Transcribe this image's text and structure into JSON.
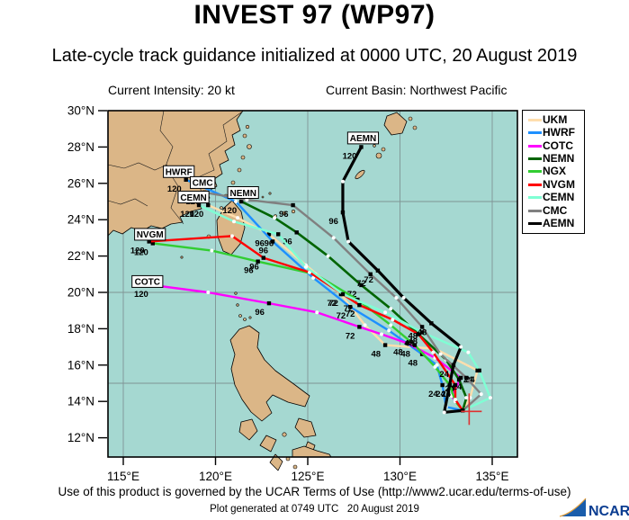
{
  "page": {
    "title": "INVEST 97 (WP97)",
    "subtitle": "Late-cycle track guidance initialized at 0000 UTC, 20 August 2019",
    "intensity": "Current Intensity: 20 kt",
    "basin": "Current Basin: Northwest Pacific",
    "terms": "Use of this product is governed by the UCAR Terms of Use (http://www2.ucar.edu/terms-of-use)",
    "generated": "Plot generated at 0749 UTC   20 August 2019",
    "logo_text": "NCAR"
  },
  "chart_data": {
    "type": "line",
    "title": "INVEST 97 (WP97)",
    "subtitle": "Late-cycle track guidance initialized at 0000 UTC, 20 August 2019",
    "current_intensity_kt": 20,
    "basin": "Northwest Pacific",
    "map": {
      "lon_range": [
        114.2,
        136.4
      ],
      "lat_range": [
        10.9,
        30.0
      ],
      "grid_lons": [
        115,
        120,
        125,
        130,
        135
      ],
      "grid_lats": [
        15,
        20,
        25
      ],
      "ocean_color": "#A5D8D1",
      "land_color": "#DBB687",
      "grid_color": "#7f9494"
    },
    "x_ticks": [
      {
        "lon": 115,
        "label": "115°E"
      },
      {
        "lon": 120,
        "label": "120°E"
      },
      {
        "lon": 125,
        "label": "125°E"
      },
      {
        "lon": 130,
        "label": "130°E"
      },
      {
        "lon": 135,
        "label": "135°E"
      }
    ],
    "y_ticks": [
      {
        "lat": 30,
        "label": "30°N"
      },
      {
        "lat": 28,
        "label": "28°N"
      },
      {
        "lat": 26,
        "label": "26°N"
      },
      {
        "lat": 24,
        "label": "24°N"
      },
      {
        "lat": 22,
        "label": "22°N"
      },
      {
        "lat": 20,
        "label": "20°N"
      },
      {
        "lat": 18,
        "label": "18°N"
      },
      {
        "lat": 16,
        "label": "16°N"
      },
      {
        "lat": 14,
        "label": "14°N"
      },
      {
        "lat": 12,
        "label": "12°N"
      }
    ],
    "hour_labels": [
      "24",
      "48",
      "72",
      "96",
      "120"
    ],
    "start_marker": {
      "lon": 133.75,
      "lat": 13.45,
      "color": "#e03030"
    },
    "tracks": [
      {
        "id": "UKM",
        "color": "#FFDEAD",
        "width": 2.4,
        "name_box": false,
        "box_offset": [
          0,
          0
        ],
        "points": [
          [
            133.4,
            13.5
          ],
          [
            133.8,
            14.2
          ],
          [
            134.2,
            15.7
          ],
          [
            131.9,
            16.9
          ],
          [
            129.2,
            17.1
          ],
          [
            128.1,
            18.2
          ],
          [
            126.8,
            19.9
          ],
          [
            124.9,
            21.5
          ],
          [
            122.9,
            23.2
          ],
          [
            121.2,
            24.1
          ],
          [
            119.6,
            24.8
          ]
        ]
      },
      {
        "id": "HWRF",
        "color": "#1E90FF",
        "width": 2.4,
        "name_box": true,
        "box_offset": [
          -8,
          -9
        ],
        "points": [
          [
            133.4,
            13.5
          ],
          [
            132.5,
            13.7
          ],
          [
            132.3,
            14.9
          ],
          [
            132.0,
            16.0
          ],
          [
            131.2,
            16.6
          ],
          [
            129.4,
            17.9
          ],
          [
            127.3,
            19.2
          ],
          [
            125.3,
            20.8
          ],
          [
            123.1,
            22.8
          ],
          [
            121.1,
            25.0
          ],
          [
            118.4,
            26.2
          ]
        ]
      },
      {
        "id": "COTC",
        "color": "#FF00FF",
        "width": 2.4,
        "name_box": true,
        "box_offset": [
          -6,
          -4
        ],
        "points": [
          [
            133.4,
            13.5
          ],
          [
            132.8,
            14.3
          ],
          [
            133.3,
            15.3
          ],
          [
            131.9,
            16.4
          ],
          [
            130.4,
            17.2
          ],
          [
            129.0,
            17.7
          ],
          [
            127.8,
            18.1
          ],
          [
            125.5,
            18.9
          ],
          [
            122.9,
            19.4
          ],
          [
            119.6,
            20.0
          ],
          [
            116.6,
            20.4
          ]
        ]
      },
      {
        "id": "NEMN",
        "color": "#006400",
        "width": 2.6,
        "name_box": true,
        "box_offset": [
          2,
          -10
        ],
        "points": [
          [
            133.4,
            13.5
          ],
          [
            133.6,
            14.2
          ],
          [
            133.2,
            15.2
          ],
          [
            132.5,
            16.3
          ],
          [
            131.0,
            17.7
          ],
          [
            129.5,
            19.1
          ],
          [
            127.9,
            20.4
          ],
          [
            126.1,
            22.0
          ],
          [
            124.4,
            23.3
          ],
          [
            123.2,
            24.1
          ],
          [
            121.4,
            25.0
          ]
        ]
      },
      {
        "id": "NGX",
        "color": "#32CD32",
        "width": 2.4,
        "name_box": false,
        "box_offset": [
          0,
          0
        ],
        "points": [
          [
            133.4,
            13.5
          ],
          [
            133.0,
            14.0
          ],
          [
            132.7,
            14.9
          ],
          [
            131.9,
            15.9
          ],
          [
            130.8,
            17.1
          ],
          [
            129.5,
            18.2
          ],
          [
            127.7,
            19.6
          ],
          [
            125.4,
            21.0
          ],
          [
            122.3,
            21.7
          ],
          [
            119.8,
            22.3
          ],
          [
            116.6,
            22.7
          ]
        ]
      },
      {
        "id": "NVGM",
        "color": "#FF0000",
        "width": 2.4,
        "name_box": true,
        "box_offset": [
          1,
          -8
        ],
        "points": [
          [
            133.4,
            13.5
          ],
          [
            133.0,
            14.1
          ],
          [
            133.0,
            14.9
          ],
          [
            131.8,
            16.7
          ],
          [
            131.0,
            17.7
          ],
          [
            129.6,
            18.5
          ],
          [
            127.8,
            19.3
          ],
          [
            125.1,
            21.1
          ],
          [
            122.6,
            21.9
          ],
          [
            120.9,
            23.1
          ],
          [
            116.4,
            22.8
          ]
        ]
      },
      {
        "id": "CEMN",
        "color": "#7FFFD4",
        "width": 2.4,
        "name_box": true,
        "box_offset": [
          -6,
          -9
        ],
        "points": [
          [
            133.4,
            13.5
          ],
          [
            134.9,
            14.2
          ],
          [
            134.3,
            15.7
          ],
          [
            133.7,
            16.7
          ],
          [
            131.2,
            17.8
          ],
          [
            129.2,
            18.9
          ],
          [
            126.9,
            19.9
          ],
          [
            124.9,
            21.4
          ],
          [
            123.4,
            23.2
          ],
          [
            121.0,
            23.9
          ],
          [
            119.1,
            24.8
          ]
        ]
      },
      {
        "id": "CMC",
        "color": "#808080",
        "width": 2.4,
        "name_box": true,
        "box_offset": [
          -2,
          -11
        ],
        "points": [
          [
            133.4,
            13.5
          ],
          [
            134.4,
            14.4
          ],
          [
            133.6,
            15.3
          ],
          [
            132.2,
            16.6
          ],
          [
            131.2,
            18.1
          ],
          [
            129.8,
            19.7
          ],
          [
            128.4,
            21.0
          ],
          [
            126.4,
            23.0
          ],
          [
            124.2,
            24.8
          ],
          [
            121.7,
            25.1
          ],
          [
            119.4,
            25.5
          ]
        ]
      },
      {
        "id": "AEMN",
        "color": "#000000",
        "width": 3.2,
        "name_box": true,
        "box_offset": [
          2,
          -10
        ],
        "points": [
          [
            133.4,
            13.5
          ],
          [
            132.4,
            13.4
          ],
          [
            132.9,
            16.0
          ],
          [
            133.3,
            17.0
          ],
          [
            131.7,
            18.3
          ],
          [
            130.2,
            19.7
          ],
          [
            128.8,
            21.2
          ],
          [
            127.2,
            22.8
          ],
          [
            126.9,
            24.4
          ],
          [
            126.9,
            26.1
          ],
          [
            127.9,
            28.0
          ]
        ]
      }
    ],
    "legend": {
      "position": "upper-right-outside",
      "items": [
        {
          "label": "UKM",
          "color": "#FFDEAD"
        },
        {
          "label": "HWRF",
          "color": "#1E90FF"
        },
        {
          "label": "COTC",
          "color": "#FF00FF"
        },
        {
          "label": "NEMN",
          "color": "#006400"
        },
        {
          "label": "NGX",
          "color": "#32CD32"
        },
        {
          "label": "NVGM",
          "color": "#FF0000"
        },
        {
          "label": "CEMN",
          "color": "#7FFFD4"
        },
        {
          "label": "CMC",
          "color": "#808080"
        },
        {
          "label": "AEMN",
          "color": "#000000"
        }
      ]
    }
  }
}
